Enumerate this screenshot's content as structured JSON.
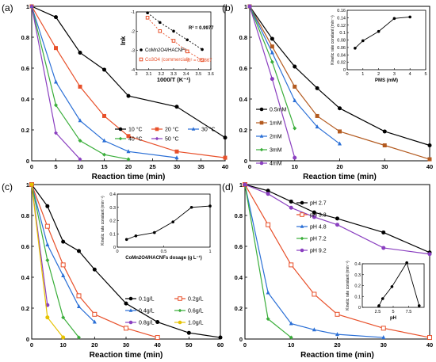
{
  "chart_data": [
    {
      "panel": "(a)",
      "type": "line",
      "xlabel": "Reaction time (min)",
      "ylabel": "RhB (Ct/C0)",
      "xlim": [
        0,
        40
      ],
      "ylim": [
        0,
        1
      ],
      "xticks": [
        0,
        5,
        10,
        15,
        20,
        25,
        30,
        35,
        40
      ],
      "yticks": [
        0,
        0.2,
        0.4,
        0.6,
        0.8,
        1
      ],
      "series": [
        {
          "name": "10 °C",
          "color": "#000000",
          "marker": "circle",
          "x": [
            0,
            5,
            10,
            15,
            20,
            30,
            40
          ],
          "values": [
            1,
            0.93,
            0.7,
            0.59,
            0.42,
            0.35,
            0.15
          ]
        },
        {
          "name": "20 °C",
          "color": "#e8502a",
          "marker": "square",
          "x": [
            0,
            5,
            10,
            15,
            20,
            30,
            40
          ],
          "values": [
            1,
            0.73,
            0.48,
            0.29,
            0.16,
            0.06,
            0.02
          ]
        },
        {
          "name": "30 °C",
          "color": "#2a6fd6",
          "marker": "triangle",
          "x": [
            0,
            5,
            10,
            15,
            20,
            30
          ],
          "values": [
            1,
            0.51,
            0.26,
            0.13,
            0.06,
            0.02
          ]
        },
        {
          "name": "40 °C",
          "color": "#3aae3a",
          "marker": "diamond",
          "x": [
            0,
            5,
            10,
            15,
            20
          ],
          "values": [
            1,
            0.36,
            0.13,
            0.04,
            0.01
          ]
        },
        {
          "name": "50 °C",
          "color": "#8a3fc0",
          "marker": "diamond",
          "x": [
            0,
            5,
            10
          ],
          "values": [
            1,
            0.18,
            0.01
          ]
        }
      ],
      "inset": {
        "type": "scatter",
        "xlabel": "1000/T (K⁻¹)",
        "ylabel": "lnk",
        "xlim": [
          3.0,
          3.6
        ],
        "ylim": [
          -4,
          -1
        ],
        "xticks": [
          3.0,
          3.1,
          3.2,
          3.3,
          3.4,
          3.5,
          3.6
        ],
        "yticks": [
          -1,
          -2,
          -3,
          -4
        ],
        "series": [
          {
            "name": "CoMn2O4/HACNFs",
            "color": "#000000",
            "marker": "circle",
            "x": [
              3.09,
              3.19,
              3.3,
              3.41,
              3.53
            ],
            "values": [
              -1.05,
              -1.55,
              -2.0,
              -2.45,
              -2.95
            ]
          },
          {
            "name": "Co3O4 (commercial)",
            "color": "#e8502a",
            "marker": "square-open",
            "x": [
              3.09,
              3.19,
              3.3,
              3.41,
              3.53
            ],
            "values": [
              -1.3,
              -2.0,
              -2.5,
              -3.05,
              -3.5
            ]
          }
        ],
        "annotations": [
          "R² = 0.9977",
          "R² = 0.9867"
        ]
      }
    },
    {
      "panel": "(b)",
      "type": "line",
      "xlabel": "Reaction time (min)",
      "ylabel": "RhB (Ct/C0)",
      "xlim": [
        0,
        40
      ],
      "ylim": [
        0,
        1
      ],
      "xticks": [
        0,
        10,
        20,
        30,
        40
      ],
      "yticks": [
        0,
        0.2,
        0.4,
        0.6,
        0.8,
        1
      ],
      "series": [
        {
          "name": "0.5mM",
          "color": "#000000",
          "marker": "circle",
          "x": [
            0,
            5,
            10,
            15,
            20,
            30,
            40
          ],
          "values": [
            1,
            0.79,
            0.61,
            0.47,
            0.34,
            0.19,
            0.1
          ]
        },
        {
          "name": "1mM",
          "color": "#b35a1f",
          "marker": "square",
          "x": [
            0,
            5,
            10,
            15,
            20,
            30,
            40
          ],
          "values": [
            1,
            0.74,
            0.48,
            0.29,
            0.19,
            0.1,
            0.01
          ]
        },
        {
          "name": "2mM",
          "color": "#2a6fd6",
          "marker": "triangle",
          "x": [
            0,
            5,
            10,
            15,
            20
          ],
          "values": [
            1,
            0.7,
            0.39,
            0.22,
            0.11
          ]
        },
        {
          "name": "3mM",
          "color": "#3aae3a",
          "marker": "diamond",
          "x": [
            0,
            5,
            10
          ],
          "values": [
            1,
            0.64,
            0.21
          ]
        },
        {
          "name": "4mM",
          "color": "#8a3fc0",
          "marker": "circle",
          "x": [
            0,
            5,
            10
          ],
          "values": [
            1,
            0.53,
            0.02
          ]
        }
      ],
      "inset": {
        "type": "line",
        "xlabel": "PMS (mM)",
        "ylabel": "Kinetic rate constant (min⁻¹)",
        "xlim": [
          0,
          5
        ],
        "ylim": [
          0,
          0.16
        ],
        "xticks": [
          0,
          1,
          2,
          3,
          4,
          5
        ],
        "yticks": [
          0,
          0.02,
          0.04,
          0.06,
          0.08,
          0.1,
          0.12,
          0.14,
          0.16
        ],
        "series": [
          {
            "name": "",
            "color": "#000000",
            "marker": "circle",
            "x": [
              0.5,
              1,
              2,
              3,
              4
            ],
            "values": [
              0.058,
              0.078,
              0.103,
              0.138,
              0.142
            ]
          }
        ]
      }
    },
    {
      "panel": "(c)",
      "type": "line",
      "xlabel": "Reaction time (min)",
      "ylabel": "RhB (Ct/C0)",
      "xlim": [
        0,
        60
      ],
      "ylim": [
        0,
        1
      ],
      "xticks": [
        0,
        10,
        20,
        30,
        40,
        50,
        60
      ],
      "yticks": [
        0,
        0.2,
        0.4,
        0.6,
        0.8,
        1
      ],
      "series": [
        {
          "name": "0.1g/L",
          "color": "#000000",
          "marker": "circle",
          "x": [
            0,
            5,
            10,
            15,
            20,
            30,
            40,
            50,
            60
          ],
          "values": [
            1,
            0.86,
            0.63,
            0.57,
            0.45,
            0.23,
            0.11,
            0.04,
            0.01
          ]
        },
        {
          "name": "0.2g/L",
          "color": "#e8502a",
          "marker": "square-open",
          "x": [
            0,
            5,
            10,
            15,
            20,
            30,
            40
          ],
          "values": [
            1,
            0.73,
            0.48,
            0.28,
            0.16,
            0.07,
            0.01
          ]
        },
        {
          "name": "0.4g/L",
          "color": "#2a6fd6",
          "marker": "triangle",
          "x": [
            0,
            5,
            10,
            15,
            20
          ],
          "values": [
            1,
            0.61,
            0.41,
            0.21,
            0.11
          ]
        },
        {
          "name": "0.6g/L",
          "color": "#3aae3a",
          "marker": "diamond",
          "x": [
            0,
            5,
            10,
            15
          ],
          "values": [
            1,
            0.51,
            0.14,
            0.01
          ]
        },
        {
          "name": "0.8g/L",
          "color": "#8a3fc0",
          "marker": "circle",
          "x": [
            0,
            5
          ],
          "values": [
            1,
            0.22
          ]
        },
        {
          "name": "1.0g/L",
          "color": "#e6c200",
          "marker": "circle",
          "x": [
            0,
            5,
            10
          ],
          "values": [
            1,
            0.14,
            0.01
          ]
        }
      ],
      "inset": {
        "type": "line",
        "xlabel": "CoMn2O4/HACNFs dosage (g L⁻¹)",
        "ylabel": "Kinetic rate constant (min⁻¹)",
        "xlim": [
          0,
          1
        ],
        "ylim": [
          0,
          0.4
        ],
        "xticks": [
          0,
          0.5,
          1
        ],
        "yticks": [
          0,
          0.1,
          0.2,
          0.3,
          0.4
        ],
        "series": [
          {
            "name": "",
            "color": "#000000",
            "marker": "circle",
            "x": [
              0.1,
              0.2,
              0.4,
              0.6,
              0.8,
              1.0
            ],
            "values": [
              0.058,
              0.085,
              0.11,
              0.19,
              0.3,
              0.31
            ]
          }
        ]
      }
    },
    {
      "panel": "(d)",
      "type": "line",
      "xlabel": "Reaction time (min)",
      "ylabel": "RhB (Ct/C0)",
      "xlim": [
        0,
        40
      ],
      "ylim": [
        0,
        1
      ],
      "xticks": [
        0,
        10,
        20,
        30,
        40
      ],
      "yticks": [
        0,
        0.2,
        0.4,
        0.6,
        0.8,
        1
      ],
      "series": [
        {
          "name": "pH 2.7",
          "color": "#000000",
          "marker": "circle",
          "x": [
            0,
            5,
            10,
            15,
            20,
            30,
            40
          ],
          "values": [
            1,
            0.96,
            0.89,
            0.82,
            0.78,
            0.69,
            0.56
          ]
        },
        {
          "name": "pH 3.3",
          "color": "#e8502a",
          "marker": "square-open",
          "x": [
            0,
            5,
            10,
            15,
            20,
            30,
            40
          ],
          "values": [
            1,
            0.74,
            0.48,
            0.29,
            0.16,
            0.07,
            0.01
          ]
        },
        {
          "name": "pH 4.8",
          "color": "#2a6fd6",
          "marker": "triangle",
          "x": [
            0,
            5,
            10,
            15,
            20,
            30
          ],
          "values": [
            1,
            0.3,
            0.1,
            0.06,
            0.03,
            0.01
          ]
        },
        {
          "name": "pH 7.2",
          "color": "#3aae3a",
          "marker": "diamond",
          "x": [
            0,
            5,
            10
          ],
          "values": [
            1,
            0.13,
            0.01
          ]
        },
        {
          "name": "pH 9.2",
          "color": "#8a3fc0",
          "marker": "circle",
          "x": [
            0,
            5,
            10,
            15,
            20,
            30,
            40
          ],
          "values": [
            1,
            0.94,
            0.85,
            0.79,
            0.74,
            0.59,
            0.55
          ]
        }
      ],
      "inset": {
        "type": "line",
        "xlabel": "pH",
        "ylabel": "Kinetic rate constant (min⁻¹)",
        "xlim": [
          0,
          10
        ],
        "ylim": [
          0,
          0.4
        ],
        "xticks": [
          2.5,
          5,
          7.5
        ],
        "yticks": [
          0,
          0.1,
          0.2,
          0.3,
          0.4
        ],
        "series": [
          {
            "name": "",
            "color": "#000000",
            "marker": "circle",
            "x": [
              2.7,
              3.3,
              4.8,
              7.2,
              9.2
            ],
            "values": [
              0.015,
              0.08,
              0.19,
              0.41,
              0.015
            ]
          }
        ]
      }
    }
  ]
}
